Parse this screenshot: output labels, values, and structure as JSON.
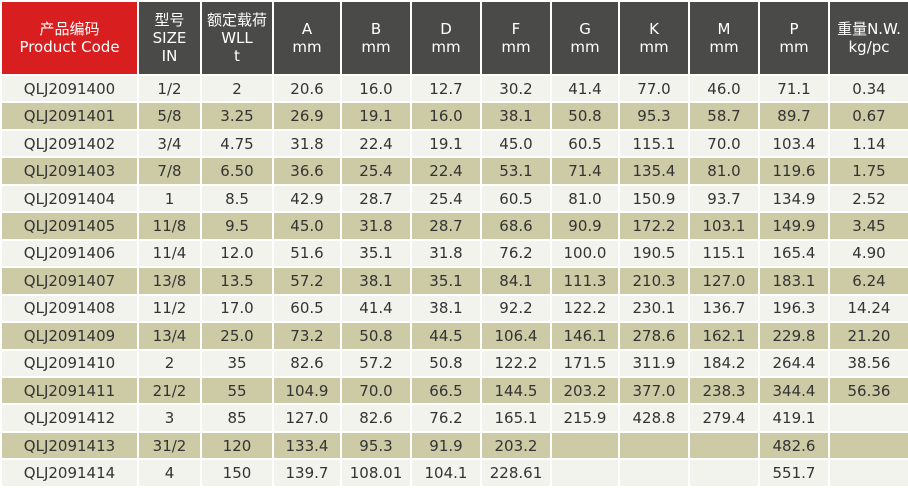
{
  "table": {
    "header": [
      [
        "产品编码",
        "Product Code"
      ],
      [
        "型号",
        "SIZE",
        "IN"
      ],
      [
        "额定载荷",
        "WLL",
        "t"
      ],
      [
        "A",
        "mm"
      ],
      [
        "B",
        "mm"
      ],
      [
        "D",
        "mm"
      ],
      [
        "F",
        "mm"
      ],
      [
        "G",
        "mm"
      ],
      [
        "K",
        "mm"
      ],
      [
        "M",
        "mm"
      ],
      [
        "P",
        "mm"
      ],
      [
        "重量N.W.",
        "kg/pc"
      ]
    ],
    "rows": [
      [
        "QLJ2091400",
        "1/2",
        "2",
        "20.6",
        "16.0",
        "12.7",
        "30.2",
        "41.4",
        "77.0",
        "46.0",
        "71.1",
        "0.34"
      ],
      [
        "QLJ2091401",
        "5/8",
        "3.25",
        "26.9",
        "19.1",
        "16.0",
        "38.1",
        "50.8",
        "95.3",
        "58.7",
        "89.7",
        "0.67"
      ],
      [
        "QLJ2091402",
        "3/4",
        "4.75",
        "31.8",
        "22.4",
        "19.1",
        "45.0",
        "60.5",
        "115.1",
        "70.0",
        "103.4",
        "1.14"
      ],
      [
        "QLJ2091403",
        "7/8",
        "6.50",
        "36.6",
        "25.4",
        "22.4",
        "53.1",
        "71.4",
        "135.4",
        "81.0",
        "119.6",
        "1.75"
      ],
      [
        "QLJ2091404",
        "1",
        "8.5",
        "42.9",
        "28.7",
        "25.4",
        "60.5",
        "81.0",
        "150.9",
        "93.7",
        "134.9",
        "2.52"
      ],
      [
        "QLJ2091405",
        "11/8",
        "9.5",
        "45.0",
        "31.8",
        "28.7",
        "68.6",
        "90.9",
        "172.2",
        "103.1",
        "149.9",
        "3.45"
      ],
      [
        "QLJ2091406",
        "11/4",
        "12.0",
        "51.6",
        "35.1",
        "31.8",
        "76.2",
        "100.0",
        "190.5",
        "115.1",
        "165.4",
        "4.90"
      ],
      [
        "QLJ2091407",
        "13/8",
        "13.5",
        "57.2",
        "38.1",
        "35.1",
        "84.1",
        "111.3",
        "210.3",
        "127.0",
        "183.1",
        "6.24"
      ],
      [
        "QLJ2091408",
        "11/2",
        "17.0",
        "60.5",
        "41.4",
        "38.1",
        "92.2",
        "122.2",
        "230.1",
        "136.7",
        "196.3",
        "14.24"
      ],
      [
        "QLJ2091409",
        "13/4",
        "25.0",
        "73.2",
        "50.8",
        "44.5",
        "106.4",
        "146.1",
        "278.6",
        "162.1",
        "229.8",
        "21.20"
      ],
      [
        "QLJ2091410",
        "2",
        "35",
        "82.6",
        "57.2",
        "50.8",
        "122.2",
        "171.5",
        "311.9",
        "184.2",
        "264.4",
        "38.56"
      ],
      [
        "QLJ2091411",
        "21/2",
        "55",
        "104.9",
        "70.0",
        "66.5",
        "144.5",
        "203.2",
        "377.0",
        "238.3",
        "344.4",
        "56.36"
      ],
      [
        "QLJ2091412",
        "3",
        "85",
        "127.0",
        "82.6",
        "76.2",
        "165.1",
        "215.9",
        "428.8",
        "279.4",
        "419.1",
        null
      ],
      [
        "QLJ2091413",
        "31/2",
        "120",
        "133.4",
        "95.3",
        "91.9",
        "203.2",
        null,
        null,
        null,
        "482.6",
        null
      ],
      [
        "QLJ2091414",
        "4",
        "150",
        "139.7",
        "108.01",
        "104.1",
        "228.61",
        null,
        null,
        null,
        "551.7",
        null
      ]
    ]
  }
}
